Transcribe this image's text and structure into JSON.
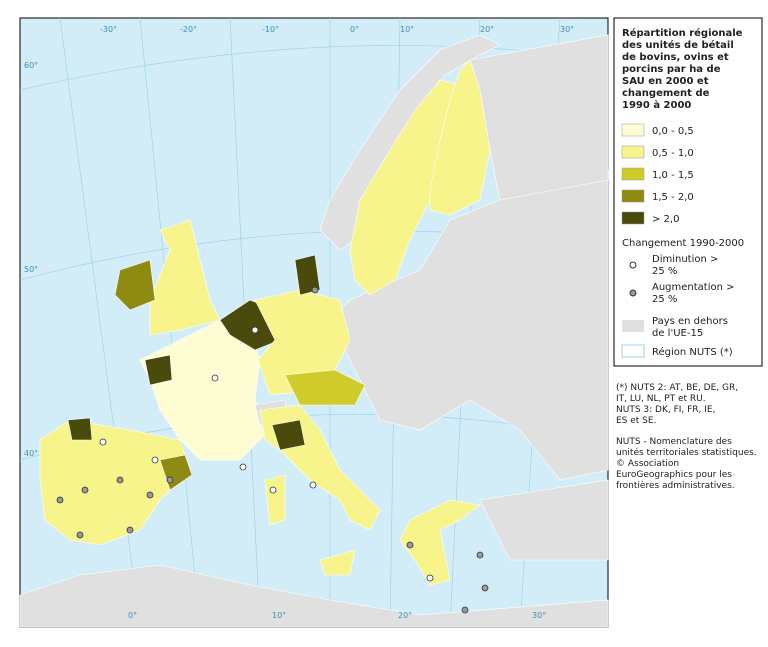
{
  "legend": {
    "title_lines": [
      "Répartition régionale",
      "des unités de bétail",
      "de bovins, ovins et",
      "porcins par ha de",
      "SAU en 2000 et",
      "changement de",
      "1990 à 2000"
    ],
    "classes": [
      {
        "label": "0,0 - 0,5",
        "color": "#fdfcd2"
      },
      {
        "label": "0,5 - 1,0",
        "color": "#f6f48a"
      },
      {
        "label": "1,0 - 1,5",
        "color": "#cfcb2a"
      },
      {
        "label": "1,5 - 2,0",
        "color": "#8e8a12"
      },
      {
        "label": "> 2,0",
        "color": "#4a4a0c"
      }
    ],
    "change_title": "Changement 1990-2000",
    "change_items": [
      {
        "lines": [
          "Diminution >",
          "25 %"
        ],
        "color": "#ffffff"
      },
      {
        "lines": [
          "Augmentation >",
          "25 %"
        ],
        "color": "#999999"
      }
    ],
    "outside_lines": [
      "Pays en dehors",
      "de l'UE-15"
    ],
    "nuts_label": "Région NUTS (*)"
  },
  "notes": [
    [
      "(*) NUTS 2: AT, BE, DE, GR,",
      "IT, LU, NL, PT et RU.",
      "NUTS 3: DK, FI, FR, IE,",
      "ES et SE."
    ],
    [
      "NUTS - Nomenclature des",
      "unités territoriales statistiques.",
      "© Association",
      "EuroGeographics pour les",
      "frontières administratives."
    ]
  ],
  "graticule": {
    "top": [
      "-30°",
      "-20°",
      "-10°",
      "0°",
      "10°",
      "20°",
      "30°"
    ],
    "left": [
      "60°",
      "50°",
      "40°"
    ],
    "bottom": [
      "0°",
      "10°",
      "20°",
      "30°"
    ]
  }
}
